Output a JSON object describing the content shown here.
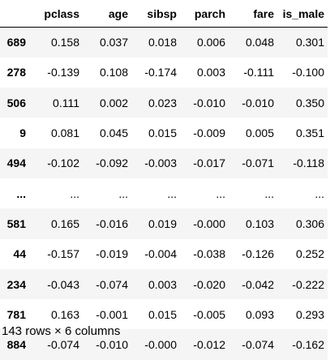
{
  "table": {
    "columns": [
      "",
      "pclass",
      "age",
      "sibsp",
      "parch",
      "fare",
      "is_male"
    ],
    "rows": [
      {
        "index": "689",
        "values": [
          "0.158",
          "0.037",
          "0.018",
          "0.006",
          "0.048",
          "0.301"
        ]
      },
      {
        "index": "278",
        "values": [
          "-0.139",
          "0.108",
          "-0.174",
          "0.003",
          "-0.111",
          "-0.100"
        ]
      },
      {
        "index": "506",
        "values": [
          "0.111",
          "0.002",
          "0.023",
          "-0.010",
          "-0.010",
          "0.350"
        ]
      },
      {
        "index": "9",
        "values": [
          "0.081",
          "0.045",
          "0.015",
          "-0.009",
          "0.005",
          "0.351"
        ]
      },
      {
        "index": "494",
        "values": [
          "-0.102",
          "-0.092",
          "-0.003",
          "-0.017",
          "-0.071",
          "-0.118"
        ]
      },
      {
        "index": "...",
        "values": [
          "...",
          "...",
          "...",
          "...",
          "...",
          "..."
        ]
      },
      {
        "index": "581",
        "values": [
          "0.165",
          "-0.016",
          "0.019",
          "-0.000",
          "0.103",
          "0.306"
        ]
      },
      {
        "index": "44",
        "values": [
          "-0.157",
          "-0.019",
          "-0.004",
          "-0.038",
          "-0.126",
          "0.252"
        ]
      },
      {
        "index": "234",
        "values": [
          "-0.043",
          "-0.074",
          "0.003",
          "-0.020",
          "-0.042",
          "-0.222"
        ]
      },
      {
        "index": "781",
        "values": [
          "0.163",
          "-0.001",
          "0.015",
          "-0.005",
          "0.093",
          "0.293"
        ]
      },
      {
        "index": "884",
        "values": [
          "-0.074",
          "-0.010",
          "-0.000",
          "-0.012",
          "-0.074",
          "-0.162"
        ]
      }
    ]
  },
  "footer": {
    "shape_text": "143 rows × 6 columns"
  }
}
